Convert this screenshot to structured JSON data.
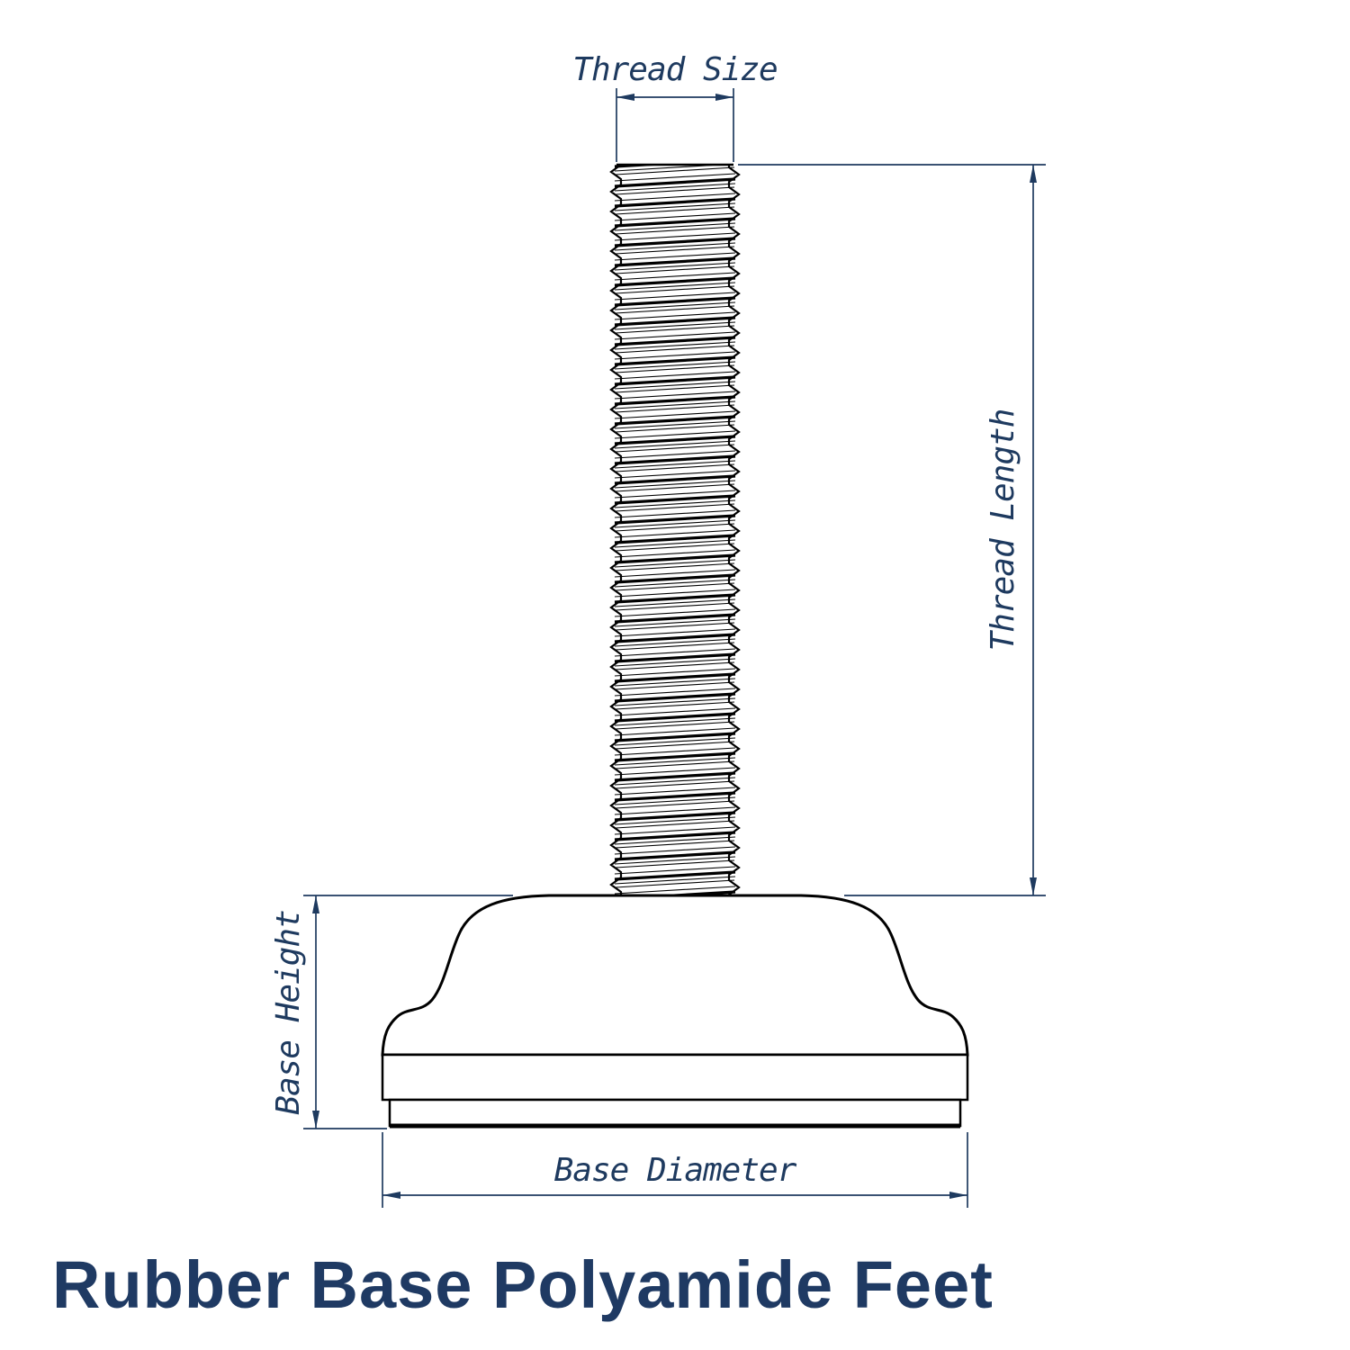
{
  "diagram": {
    "title": "Rubber Base Polyamide Feet",
    "labels": {
      "thread_size": "Thread Size",
      "thread_length": "Thread Length",
      "base_height": "Base Height",
      "base_diameter": "Base Diameter"
    },
    "colors": {
      "dimension": "#1e3a5f",
      "outline": "#000000",
      "title": "#1f3a63",
      "background": "#ffffff"
    }
  }
}
